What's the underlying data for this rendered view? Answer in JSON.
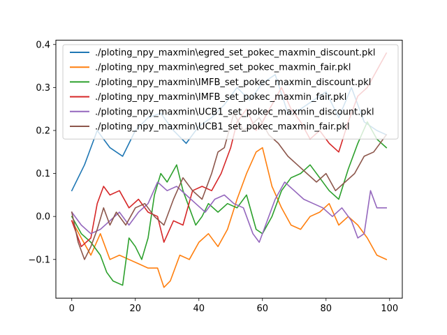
{
  "chart_data": {
    "type": "line",
    "title": "",
    "xlabel": "",
    "ylabel": "",
    "xlim": [
      -5,
      104
    ],
    "ylim": [
      -0.19,
      0.41
    ],
    "xticks": [
      0,
      20,
      40,
      60,
      80,
      100
    ],
    "xtick_labels": [
      "0",
      "20",
      "40",
      "60",
      "80",
      "100"
    ],
    "yticks": [
      -0.1,
      0.0,
      0.1,
      0.2,
      0.3,
      0.4
    ],
    "ytick_labels": [
      "−0.1",
      "0.0",
      "0.1",
      "0.2",
      "0.3",
      "0.4"
    ],
    "grid": false,
    "legend_position": "top-left",
    "series": [
      {
        "name": "./ploting_npy_maxmin\\egred_set_pokec_maxmin_discount.pkl",
        "color": "#1f77b4",
        "x": [
          0,
          4,
          8,
          12,
          16,
          20,
          24,
          28,
          32,
          36,
          40,
          44,
          48,
          52,
          56,
          60,
          64,
          68,
          72,
          76,
          80,
          84,
          88,
          92,
          96,
          99
        ],
        "values": [
          0.06,
          0.12,
          0.2,
          0.16,
          0.14,
          0.2,
          0.23,
          0.24,
          0.2,
          0.17,
          0.21,
          0.23,
          0.26,
          0.3,
          0.27,
          0.31,
          0.33,
          0.24,
          0.25,
          0.27,
          0.29,
          0.23,
          0.3,
          0.22,
          0.2,
          0.19
        ]
      },
      {
        "name": "./ploting_npy_maxmin\\egred_set_pokec_maxmin_fair.pkl",
        "color": "#ff7f0e",
        "x": [
          0,
          3,
          6,
          9,
          12,
          15,
          18,
          21,
          24,
          27,
          29,
          31,
          34,
          37,
          40,
          43,
          46,
          49,
          52,
          55,
          58,
          60,
          63,
          66,
          69,
          72,
          75,
          78,
          81,
          84,
          87,
          90,
          93,
          96,
          99
        ],
        "values": [
          -0.01,
          -0.05,
          -0.09,
          -0.04,
          -0.1,
          -0.09,
          -0.1,
          -0.11,
          -0.12,
          -0.12,
          -0.165,
          -0.15,
          -0.09,
          -0.1,
          -0.06,
          -0.04,
          -0.07,
          -0.03,
          0.04,
          0.1,
          0.15,
          0.16,
          0.07,
          0.02,
          -0.02,
          -0.03,
          0.0,
          0.01,
          0.03,
          -0.02,
          0.0,
          -0.02,
          -0.05,
          -0.09,
          -0.1
        ]
      },
      {
        "name": "./ploting_npy_maxmin\\IMFB_set_pokec_maxmin_discount.pkl",
        "color": "#2ca02c",
        "x": [
          0,
          3,
          6,
          9,
          11,
          13,
          16,
          18,
          20,
          22,
          24,
          26,
          28,
          30,
          33,
          35,
          37,
          39,
          41,
          43,
          46,
          49,
          52,
          55,
          58,
          60,
          63,
          66,
          69,
          72,
          75,
          78,
          81,
          84,
          87,
          90,
          93,
          96,
          99
        ],
        "values": [
          0.0,
          -0.04,
          -0.06,
          -0.09,
          -0.13,
          -0.15,
          -0.16,
          -0.05,
          -0.07,
          -0.1,
          -0.05,
          0.05,
          0.1,
          0.08,
          0.12,
          0.06,
          0.02,
          -0.02,
          0.0,
          0.03,
          0.01,
          0.03,
          0.02,
          0.05,
          -0.03,
          -0.04,
          0.0,
          0.06,
          0.09,
          0.1,
          0.12,
          0.09,
          0.06,
          0.04,
          0.11,
          0.17,
          0.22,
          0.18,
          0.16
        ]
      },
      {
        "name": "./ploting_npy_maxmin\\IMFB_set_pokec_maxmin_fair.pkl",
        "color": "#d62728",
        "x": [
          0,
          3,
          6,
          8,
          10,
          12,
          15,
          18,
          21,
          24,
          27,
          29,
          32,
          35,
          38,
          41,
          44,
          47,
          50,
          52,
          55,
          58,
          60,
          63,
          66,
          69,
          72,
          75,
          78,
          81,
          84,
          87,
          90,
          93,
          96,
          99
        ],
        "values": [
          -0.01,
          -0.07,
          -0.05,
          0.03,
          0.07,
          0.05,
          0.06,
          0.02,
          0.04,
          0.01,
          0.0,
          -0.06,
          -0.01,
          -0.02,
          0.06,
          0.07,
          0.06,
          0.1,
          0.16,
          0.22,
          0.25,
          0.2,
          0.22,
          0.26,
          0.3,
          0.25,
          0.22,
          0.18,
          0.2,
          0.17,
          0.15,
          0.22,
          0.28,
          0.3,
          0.34,
          0.38
        ]
      },
      {
        "name": "./ploting_npy_maxmin\\UCB1_set_pokec_maxmin_discount.pkl",
        "color": "#9467bd",
        "x": [
          0,
          3,
          6,
          9,
          12,
          15,
          18,
          21,
          24,
          27,
          30,
          33,
          36,
          39,
          42,
          45,
          48,
          51,
          54,
          57,
          59,
          61,
          64,
          67,
          70,
          73,
          76,
          79,
          82,
          85,
          88,
          90,
          92,
          94,
          96,
          99
        ],
        "values": [
          0.01,
          -0.02,
          -0.04,
          -0.03,
          -0.01,
          0.01,
          -0.02,
          0.01,
          0.03,
          0.08,
          0.06,
          0.07,
          0.05,
          0.03,
          0.01,
          0.04,
          0.05,
          0.03,
          0.02,
          -0.04,
          -0.06,
          -0.02,
          0.04,
          0.08,
          0.06,
          0.04,
          0.03,
          0.02,
          0.0,
          0.02,
          -0.01,
          -0.05,
          -0.04,
          0.06,
          0.02,
          0.02
        ]
      },
      {
        "name": "./ploting_npy_maxmin\\UCB1_set_pokec_maxmin_fair.pkl",
        "color": "#8c564b",
        "x": [
          0,
          2,
          4,
          6,
          8,
          10,
          12,
          14,
          17,
          20,
          23,
          26,
          29,
          32,
          35,
          38,
          41,
          44,
          46,
          48,
          51,
          54,
          56,
          59,
          62,
          65,
          68,
          71,
          74,
          77,
          80,
          83,
          86,
          89,
          92,
          95,
          99
        ],
        "values": [
          0.01,
          -0.06,
          -0.1,
          -0.07,
          -0.03,
          0.02,
          -0.02,
          0.01,
          -0.02,
          0.02,
          0.03,
          0.0,
          -0.02,
          0.04,
          0.09,
          0.06,
          0.04,
          0.1,
          0.15,
          0.16,
          0.24,
          0.2,
          0.21,
          0.23,
          0.19,
          0.17,
          0.14,
          0.12,
          0.1,
          0.08,
          0.1,
          0.06,
          0.08,
          0.1,
          0.14,
          0.15,
          0.19
        ]
      }
    ]
  }
}
